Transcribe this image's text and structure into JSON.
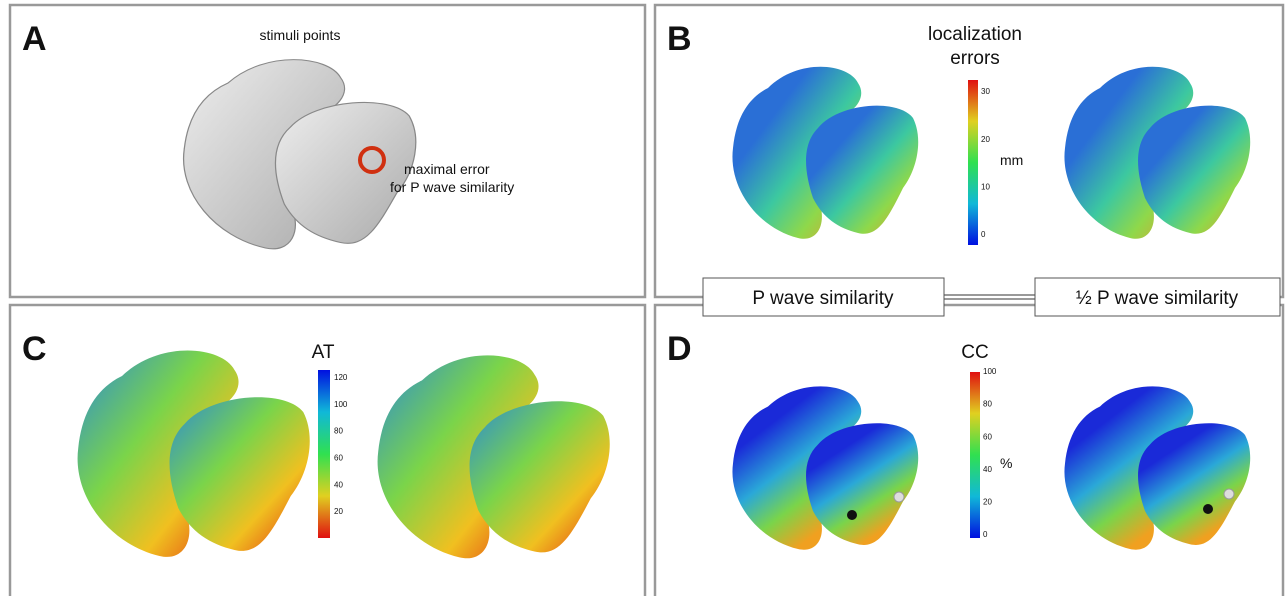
{
  "panels": [
    {
      "label": "A",
      "title": "stimuli points",
      "annotation": [
        "maximal error",
        "for P wave similarity"
      ]
    },
    {
      "label": "B",
      "colorbar": {
        "title": [
          "localization",
          "errors"
        ],
        "unit": "mm",
        "ticks": [
          30,
          20,
          10,
          0
        ]
      }
    },
    {
      "label": "C",
      "colorbar": {
        "title": [
          "AT"
        ],
        "ticks": [
          120,
          100,
          80,
          60,
          40,
          20
        ]
      }
    },
    {
      "label": "D",
      "colorbar": {
        "title": [
          "CC"
        ],
        "unit": "%",
        "ticks": [
          100,
          80,
          60,
          40,
          20,
          0
        ]
      }
    }
  ],
  "methods": [
    "P wave similarity",
    "½ P wave similarity"
  ]
}
